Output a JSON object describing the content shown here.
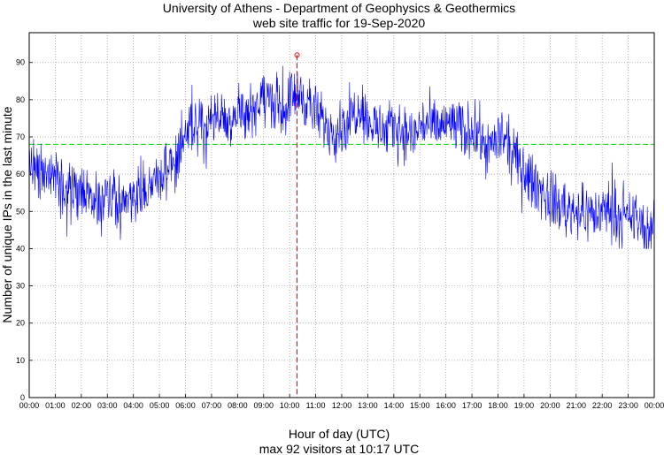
{
  "chart_data": {
    "type": "line",
    "title": "University of Athens - Department of Geophysics & Geothermics",
    "subtitle": "web site traffic for 19-Sep-2020",
    "xlabel": "Hour of day (UTC)",
    "footer": "max 92 visitors at 10:17 UTC",
    "ylabel": "Number of unique IPs in the last minute",
    "ylim": [
      0,
      98
    ],
    "yticks": [
      0,
      10,
      20,
      30,
      40,
      50,
      60,
      70,
      80,
      90
    ],
    "xticks": [
      "00:00",
      "01:00",
      "02:00",
      "03:00",
      "04:00",
      "05:00",
      "06:00",
      "07:00",
      "08:00",
      "09:00",
      "10:00",
      "11:00",
      "12:00",
      "13:00",
      "14:00",
      "15:00",
      "16:00",
      "17:00",
      "18:00",
      "19:00",
      "20:00",
      "21:00",
      "22:00",
      "23:00",
      "00:00"
    ],
    "grid": true,
    "average": 68,
    "max": {
      "time": "10:17",
      "value": 92
    },
    "series": [
      {
        "color": "#0000ff",
        "step_minutes": 15,
        "values": [
          62,
          60,
          59,
          61,
          58,
          57,
          56,
          54,
          53,
          55,
          52,
          51,
          53,
          52,
          50,
          52,
          54,
          55,
          56,
          58,
          60,
          62,
          63,
          65,
          69,
          72,
          74,
          73,
          75,
          76,
          74,
          75,
          77,
          76,
          78,
          79,
          80,
          81,
          79,
          77,
          80,
          82,
          81,
          79,
          76,
          74,
          73,
          72,
          73,
          74,
          77,
          79,
          74,
          73,
          72,
          71,
          73,
          72,
          71,
          70,
          73,
          74,
          72,
          73,
          73,
          74,
          72,
          71,
          73,
          70,
          68,
          67,
          70,
          69,
          66,
          63,
          61,
          58,
          57,
          55,
          53,
          52,
          51,
          50,
          51,
          49,
          50,
          49,
          50,
          51,
          50,
          48,
          47,
          49,
          46,
          44
        ]
      }
    ],
    "colors": {
      "series": "#0000ff",
      "average": "#00dd00",
      "max_marker": "#ff0000",
      "grid": "#999999"
    }
  }
}
